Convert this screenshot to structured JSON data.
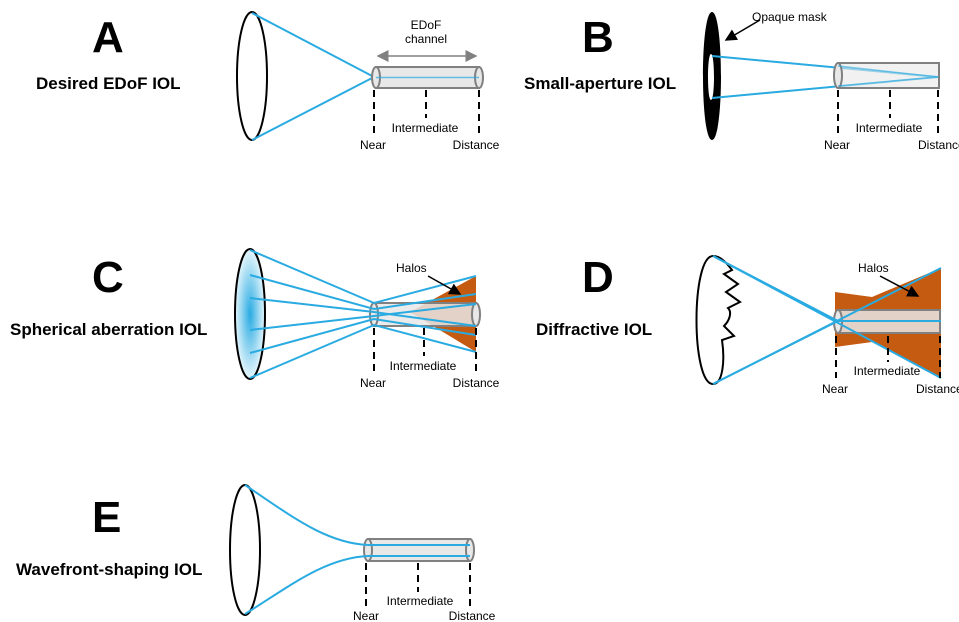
{
  "panels": {
    "a": {
      "letter": "A",
      "title": "Desired EDoF IOL",
      "annotation_line1": "EDoF",
      "annotation_line2": "channel"
    },
    "b": {
      "letter": "B",
      "title": "Small-aperture IOL",
      "annotation": "Opaque mask"
    },
    "c": {
      "letter": "C",
      "title": "Spherical aberration IOL",
      "annotation": "Halos"
    },
    "d": {
      "letter": "D",
      "title": "Diffractive IOL",
      "annotation": "Halos"
    },
    "e": {
      "letter": "E",
      "title": "Wavefront-shaping IOL"
    }
  },
  "focus_labels": {
    "near": "Near",
    "intermediate": "Intermediate",
    "distance": "Distance"
  },
  "colors": {
    "ray": "#29ABE2",
    "halo": "#C55A11",
    "channel_fill": "#E8E8E8",
    "channel_stroke": "#808080",
    "mask": "#000000"
  }
}
